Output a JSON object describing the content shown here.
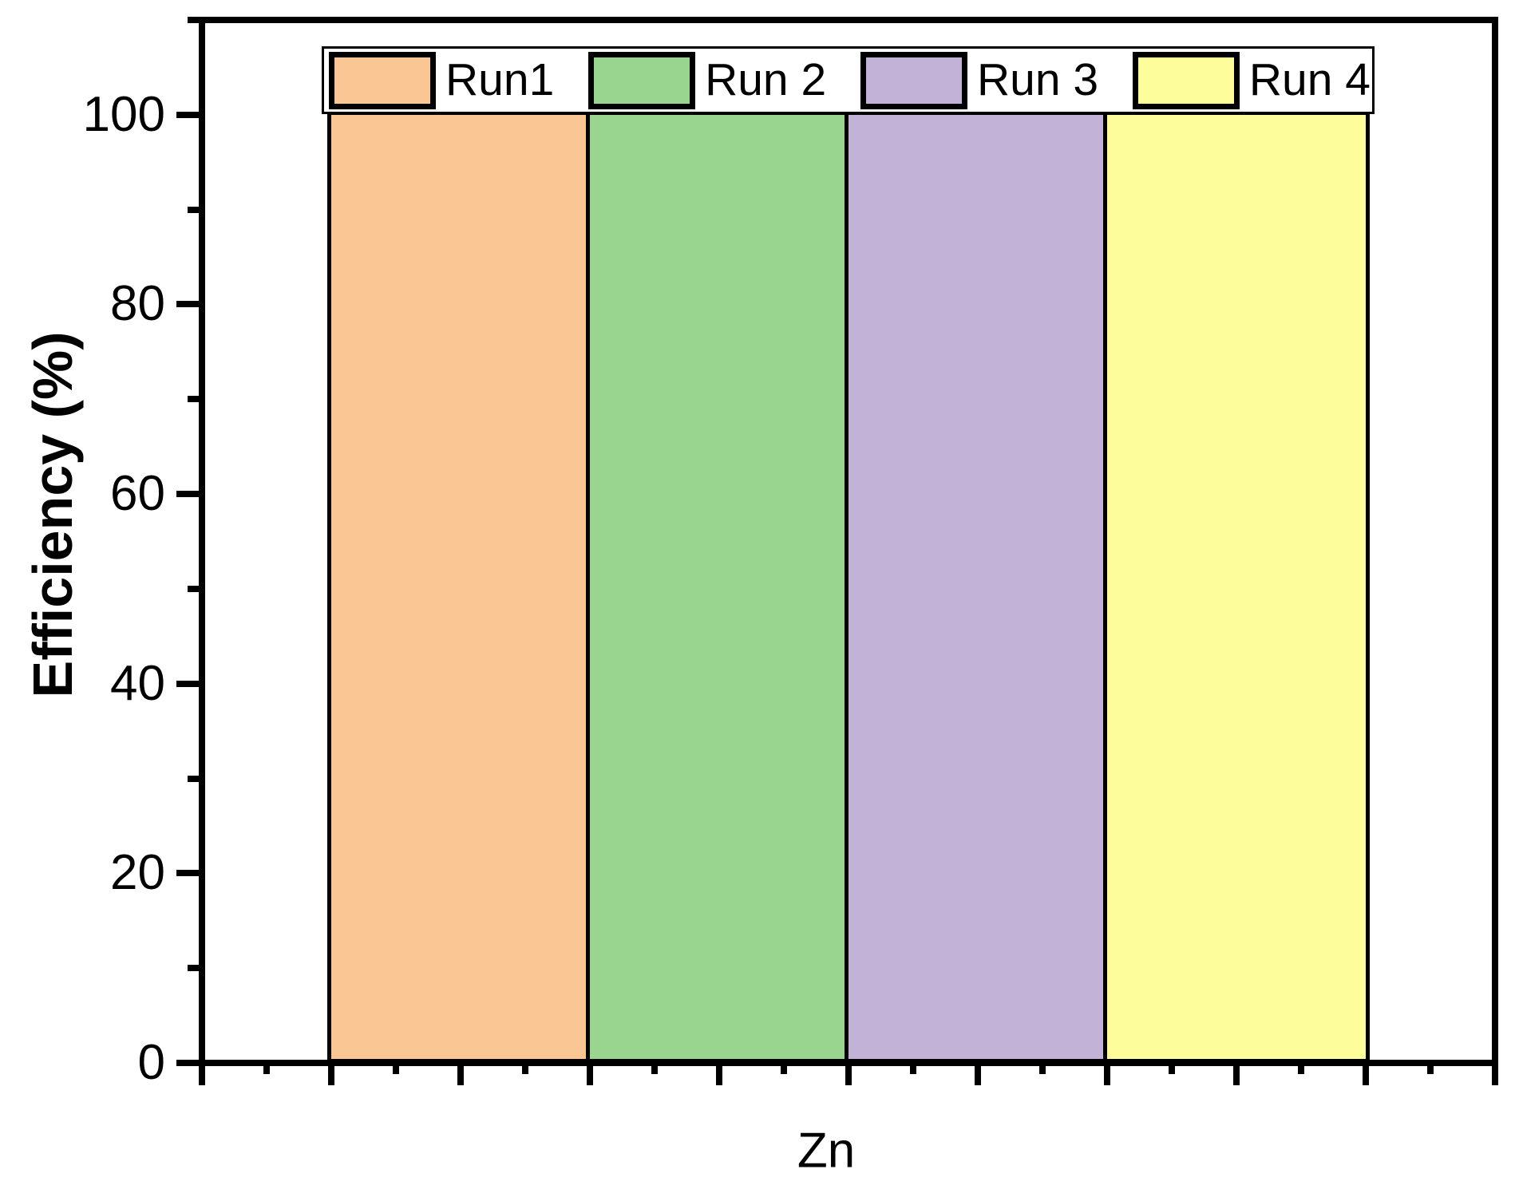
{
  "chart_data": {
    "type": "bar",
    "title": "",
    "xlabel": "Zn",
    "ylabel": "Efficiency (%)",
    "categories": [
      "Zn"
    ],
    "series": [
      {
        "name": "Run1",
        "values": [
          100
        ],
        "color": "#FAC794"
      },
      {
        "name": "Run 2",
        "values": [
          100
        ],
        "color": "#9AD58F"
      },
      {
        "name": "Run 3",
        "values": [
          100
        ],
        "color": "#C2B2D8"
      },
      {
        "name": "Run 4",
        "values": [
          100
        ],
        "color": "#FDFD9C"
      }
    ],
    "ylim": [
      0,
      110
    ],
    "yticks_major": [
      0,
      20,
      40,
      60,
      80,
      100
    ],
    "yticks_minor": [
      10,
      30,
      50,
      70,
      90,
      110
    ],
    "x_major_tick_count": 11,
    "legend_position": "top-center-inside",
    "legend_labels": [
      "Run1",
      "Run 2",
      "Run 3",
      "Run 4"
    ],
    "grid": false,
    "bar_edge_color": "#000000",
    "axis_color": "#000000"
  }
}
